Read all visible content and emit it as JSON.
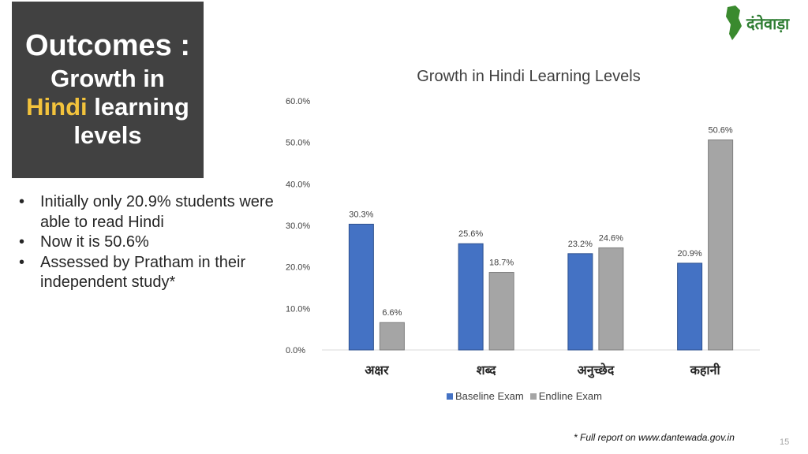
{
  "slide": {
    "title_line1": "Outcomes :",
    "title_line2": "Growth in",
    "title_highlight": "Hindi",
    "title_line3_rest": " learning",
    "title_line4": "levels",
    "bullets": [
      "Initially only 20.9% students were able to read Hindi",
      "Now it is 50.6%",
      "Assessed by Pratham in their independent study*"
    ],
    "footnote": "* Full report on www.dantewada.gov.in",
    "page_number": "15",
    "logo_text": "दंतेवाड़ा"
  },
  "colors": {
    "baseline": "#4472c4",
    "endline": "#a5a5a5",
    "title_box_bg": "#414141",
    "highlight": "#f3c33c"
  },
  "chart_data": {
    "type": "bar",
    "title": "Growth in Hindi Learning Levels",
    "categories": [
      "अक्षर",
      "शब्द",
      "अनुच्छेद",
      "कहानी"
    ],
    "series": [
      {
        "name": "Baseline Exam",
        "values": [
          30.3,
          25.6,
          23.2,
          20.9
        ]
      },
      {
        "name": "Endline Exam",
        "values": [
          6.6,
          18.7,
          24.6,
          50.6
        ]
      }
    ],
    "ylim": [
      0,
      60
    ],
    "yticks": [
      "0.0%",
      "10.0%",
      "20.0%",
      "30.0%",
      "40.0%",
      "50.0%",
      "60.0%"
    ],
    "value_labels": [
      [
        "30.3%",
        "25.6%",
        "23.2%",
        "20.9%"
      ],
      [
        "6.6%",
        "18.7%",
        "24.6%",
        "50.6%"
      ]
    ],
    "legend_position": "bottom",
    "grid": false
  }
}
